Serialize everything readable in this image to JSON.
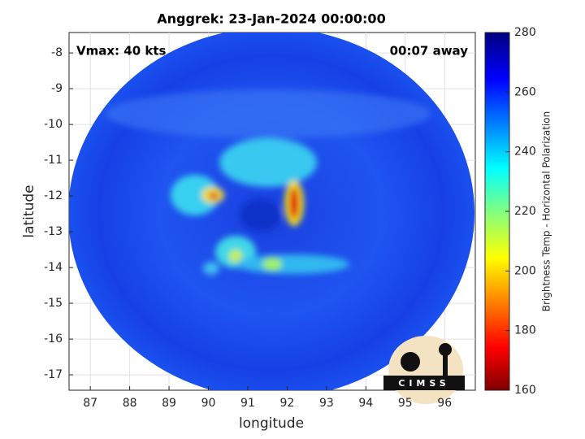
{
  "chart_data": {
    "type": "image",
    "title": "Anggrek: 23-Jan-2024 00:00:00",
    "annotations": [
      "Vmax: 40 kts",
      "00:07 away"
    ],
    "x_label": "longitude",
    "y_label": "latitude",
    "xlim": [
      86.46,
      96.78
    ],
    "xticks": [
      87,
      88,
      89,
      90,
      91,
      92,
      93,
      94,
      95,
      96
    ],
    "ylim": [
      -17.43,
      -7.43
    ],
    "yticks": [
      -8,
      -9,
      -10,
      -11,
      -12,
      -13,
      -14,
      -15,
      -16,
      -17
    ],
    "grid": true,
    "colorbar": {
      "label": "Brightness Temp - Horizontal Polarization",
      "lim": [
        160,
        280
      ],
      "ticks": [
        160,
        180,
        200,
        220,
        240,
        260,
        280
      ]
    },
    "logo": "CIMSS"
  }
}
